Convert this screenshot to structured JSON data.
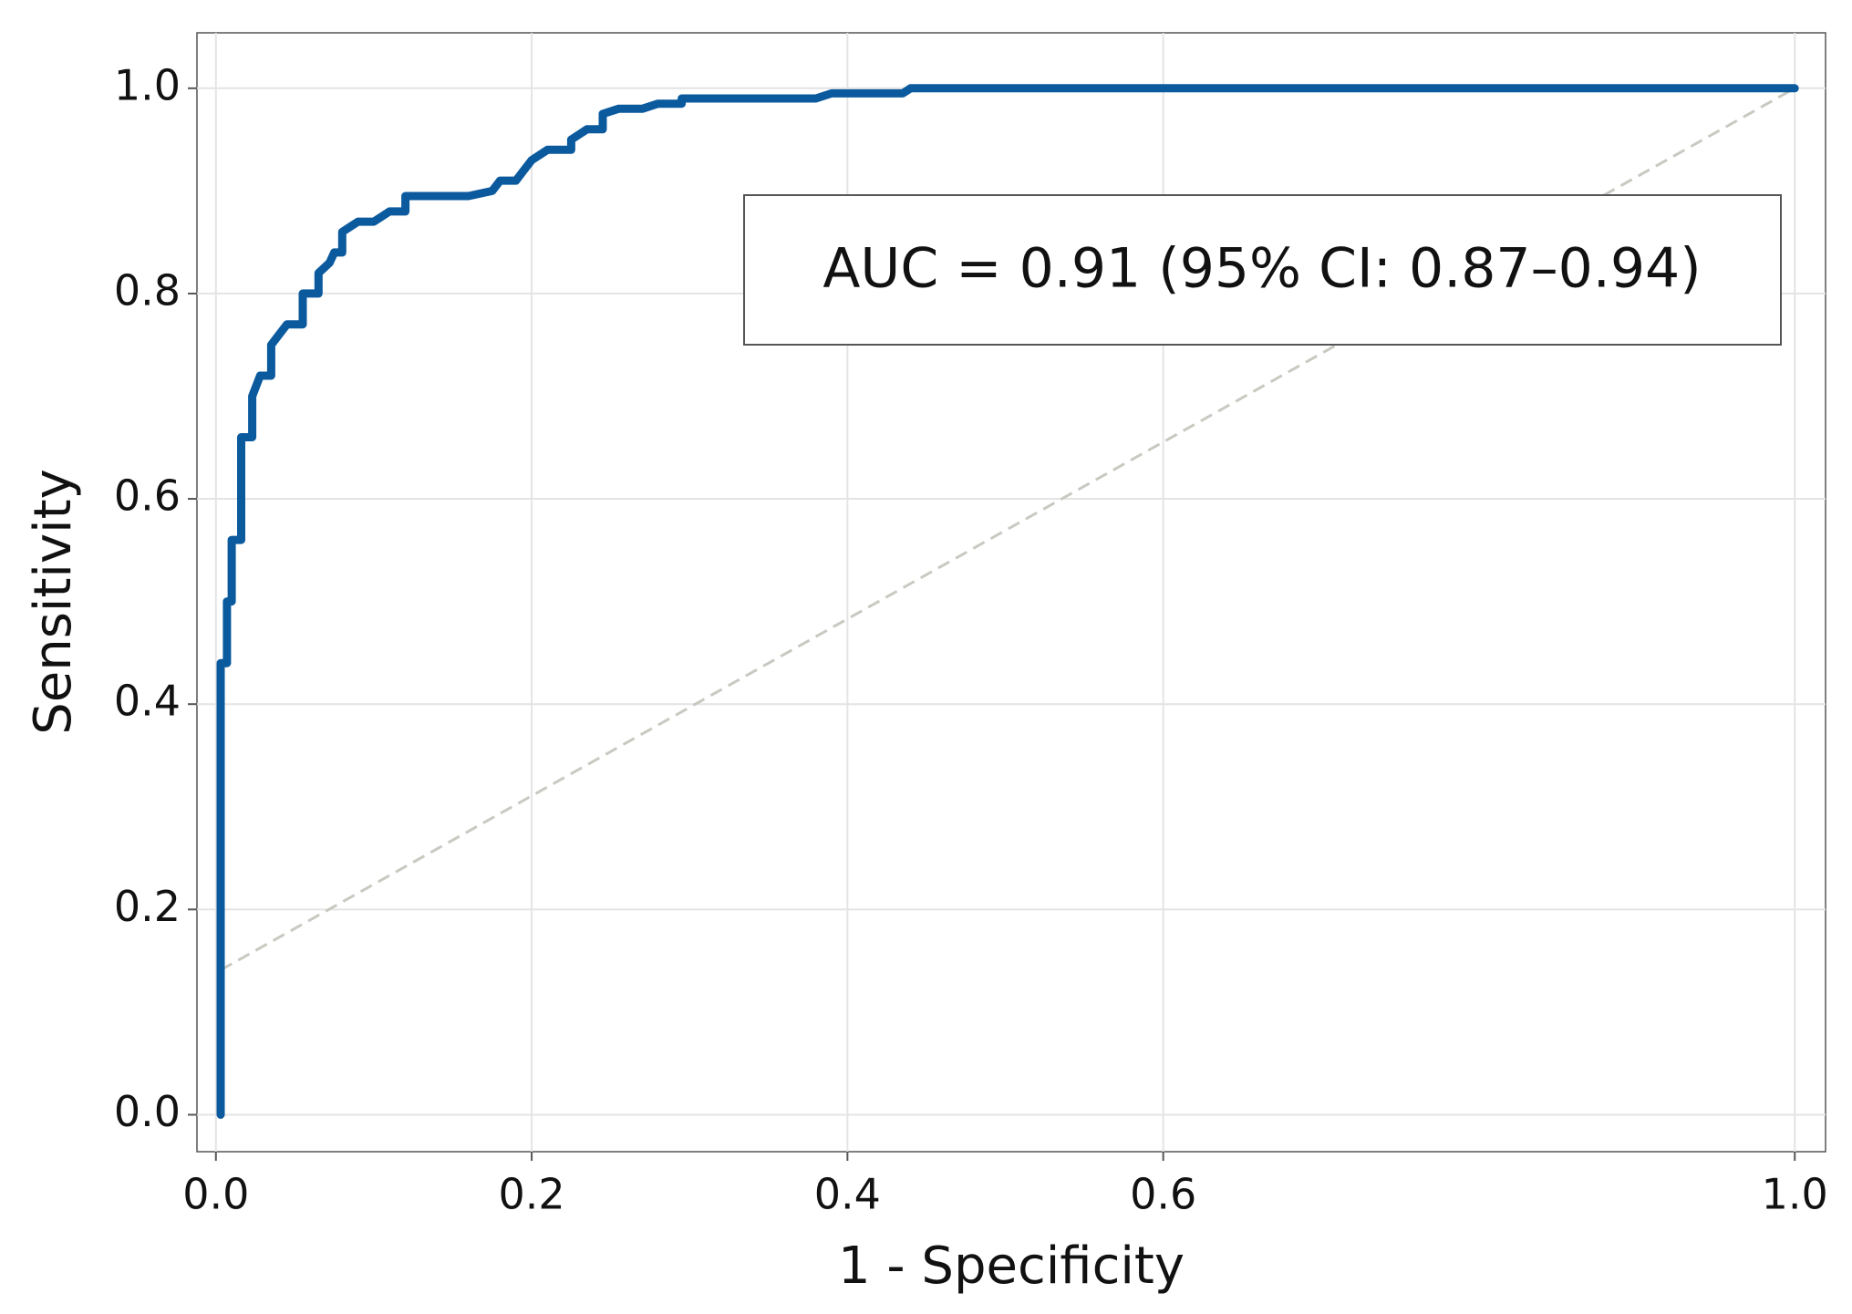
{
  "chart_data": {
    "type": "line",
    "xlabel": "1 - Specificity",
    "ylabel": "Sensitivity",
    "annotation": "AUC = 0.91 (95% CI: 0.87–0.94)",
    "xlim": [
      -0.012,
      1.0195
    ],
    "ylim": [
      -0.036,
      1.054
    ],
    "xticks": [
      0.0,
      0.2,
      0.4,
      0.6,
      1.0
    ],
    "xtick_labels": [
      "0.0",
      "0.2",
      "0.4",
      "0.6",
      "1.0"
    ],
    "yticks": [
      0.0,
      0.2,
      0.4,
      0.6,
      0.8,
      1.0
    ],
    "ytick_labels": [
      "0.0",
      "0.2",
      "0.4",
      "0.6",
      "0.8",
      "1.0"
    ],
    "grid": true,
    "series": [
      {
        "color": "#0b5a9e",
        "x": [
          0.003,
          0.003,
          0.007,
          0.007,
          0.01,
          0.01,
          0.016,
          0.016,
          0.023,
          0.023,
          0.028,
          0.035,
          0.035,
          0.04,
          0.045,
          0.055,
          0.055,
          0.065,
          0.065,
          0.072,
          0.075,
          0.08,
          0.08,
          0.09,
          0.1,
          0.105,
          0.11,
          0.12,
          0.12,
          0.16,
          0.175,
          0.18,
          0.19,
          0.195,
          0.2,
          0.21,
          0.225,
          0.225,
          0.235,
          0.245,
          0.245,
          0.255,
          0.27,
          0.28,
          0.295,
          0.295,
          0.38,
          0.39,
          0.435,
          0.44,
          1.0
        ],
        "values": [
          0.0,
          0.44,
          0.44,
          0.5,
          0.5,
          0.56,
          0.56,
          0.66,
          0.66,
          0.7,
          0.72,
          0.72,
          0.75,
          0.76,
          0.77,
          0.77,
          0.8,
          0.8,
          0.82,
          0.83,
          0.84,
          0.84,
          0.86,
          0.87,
          0.87,
          0.875,
          0.88,
          0.88,
          0.895,
          0.895,
          0.9,
          0.91,
          0.91,
          0.92,
          0.93,
          0.94,
          0.94,
          0.95,
          0.96,
          0.96,
          0.975,
          0.98,
          0.98,
          0.985,
          0.985,
          0.99,
          0.99,
          0.995,
          0.995,
          1.0,
          1.0
        ]
      }
    ],
    "reference": {
      "color": "#c9c9c2",
      "x": [
        0.003,
        1.0
      ],
      "values": [
        0.141,
        1.0
      ]
    }
  }
}
